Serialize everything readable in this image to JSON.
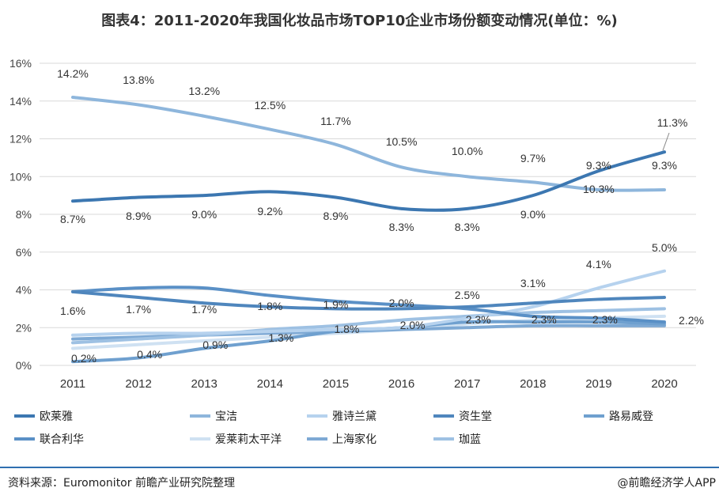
{
  "title": "图表4：2011-2020年我国化妆品市场TOP10企业市场份额变动情况(单位：%)",
  "source": "资料来源：Euromonitor 前瞻产业研究院整理",
  "brand": "@前瞻经济学人APP",
  "chart_data": {
    "type": "line",
    "title": "图表4：2011-2020年我国化妆品市场TOP10企业市场份额变动情况(单位：%)",
    "xlabel": "",
    "ylabel": "",
    "categories": [
      "2011",
      "2012",
      "2013",
      "2014",
      "2015",
      "2016",
      "2017",
      "2018",
      "2019",
      "2020"
    ],
    "yticks": [
      "0%",
      "2%",
      "4%",
      "6%",
      "8%",
      "10%",
      "12%",
      "14%",
      "16%"
    ],
    "ylim": [
      0,
      16
    ],
    "grid": true,
    "legend_position": "bottom",
    "series": [
      {
        "name": "欧莱雅",
        "color": "#3c77b1",
        "values": [
          8.7,
          8.9,
          9.0,
          9.2,
          8.9,
          8.3,
          8.3,
          9.0,
          10.3,
          11.3
        ],
        "labels": [
          "8.7%",
          "8.9%",
          "9.0%",
          "9.2%",
          "8.9%",
          "8.3%",
          "8.3%",
          "9.0%",
          "10.3%",
          "11.3%"
        ]
      },
      {
        "name": "宝洁",
        "color": "#8eb6dc",
        "values": [
          14.2,
          13.8,
          13.2,
          12.5,
          11.7,
          10.5,
          10.0,
          9.7,
          9.3,
          9.3
        ],
        "labels": [
          "14.2%",
          "13.8%",
          "13.2%",
          "12.5%",
          "11.7%",
          "10.5%",
          "10.0%",
          "9.7%",
          "9.3%",
          "9.3%"
        ]
      },
      {
        "name": "雅诗兰黛",
        "color": "#b6d2ee",
        "values": [
          1.6,
          1.7,
          1.7,
          1.8,
          1.9,
          2.0,
          2.5,
          3.1,
          4.1,
          5.0
        ],
        "labels": [
          "1.6%",
          "1.7%",
          "1.7%",
          "1.8%",
          "1.9%",
          "2.0%",
          "2.5%",
          "3.1%",
          "4.1%",
          "5.0%"
        ]
      },
      {
        "name": "资生堂",
        "color": "#4f86bd",
        "values": [
          3.9,
          3.6,
          3.3,
          3.1,
          3.0,
          3.0,
          3.1,
          3.3,
          3.5,
          3.6
        ],
        "labels": []
      },
      {
        "name": "路易威登",
        "color": "#6fa0cf",
        "values": [
          0.2,
          0.4,
          0.9,
          1.3,
          1.8,
          2.0,
          2.3,
          2.3,
          2.3,
          2.2
        ],
        "labels": [
          "0.2%",
          "0.4%",
          "0.9%",
          "1.3%",
          "1.8%",
          "2.0%",
          "2.3%",
          "2.3%",
          "2.3%",
          "2.2%"
        ]
      },
      {
        "name": "联合利华",
        "color": "#5a90c6",
        "values": [
          3.9,
          4.1,
          4.1,
          3.7,
          3.4,
          3.2,
          3.0,
          2.6,
          2.5,
          2.3
        ],
        "labels": []
      },
      {
        "name": "爱莱莉太平洋",
        "color": "#cfe1f2",
        "values": [
          0.9,
          1.1,
          1.3,
          1.5,
          1.7,
          1.9,
          2.2,
          2.4,
          2.5,
          2.6
        ],
        "labels": []
      },
      {
        "name": "上海家化",
        "color": "#7ea9d4",
        "values": [
          1.4,
          1.5,
          1.6,
          1.7,
          1.8,
          1.9,
          2.0,
          2.1,
          2.1,
          2.1
        ],
        "labels": []
      },
      {
        "name": "珈蓝",
        "color": "#9ec1e3",
        "values": [
          1.2,
          1.4,
          1.6,
          1.9,
          2.1,
          2.4,
          2.6,
          2.8,
          2.9,
          3.0
        ],
        "labels": []
      }
    ]
  }
}
